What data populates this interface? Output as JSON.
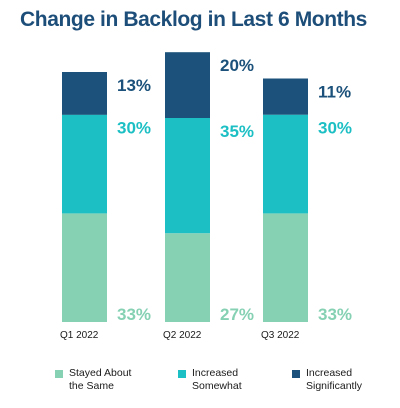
{
  "chart_data": {
    "type": "bar",
    "stacked": true,
    "title": "Change in Backlog in Last 6 Months",
    "categories": [
      "Q1 2022",
      "Q2 2022",
      "Q3 2022"
    ],
    "series": [
      {
        "name": "Stayed About the Same",
        "legend_lines": [
          "Stayed About",
          "the Same"
        ],
        "values": [
          33,
          27,
          33
        ],
        "labels": [
          "33%",
          "27%",
          "33%"
        ],
        "color": "#86d1b4"
      },
      {
        "name": "Increased Somewhat",
        "legend_lines": [
          "Increased",
          "Somewhat"
        ],
        "values": [
          30,
          35,
          30
        ],
        "labels": [
          "30%",
          "35%",
          "30%"
        ],
        "color": "#1cbfc4"
      },
      {
        "name": "Increased Significantly",
        "legend_lines": [
          "Increased",
          "Significantly"
        ],
        "values": [
          13,
          20,
          11
        ],
        "labels": [
          "13%",
          "20%",
          "11%"
        ],
        "color": "#1b517a"
      }
    ],
    "label_colors": [
      "#86d1b4",
      "#1cbfc4",
      "#1b517a"
    ],
    "legend_position": "bottom",
    "grid": false
  }
}
